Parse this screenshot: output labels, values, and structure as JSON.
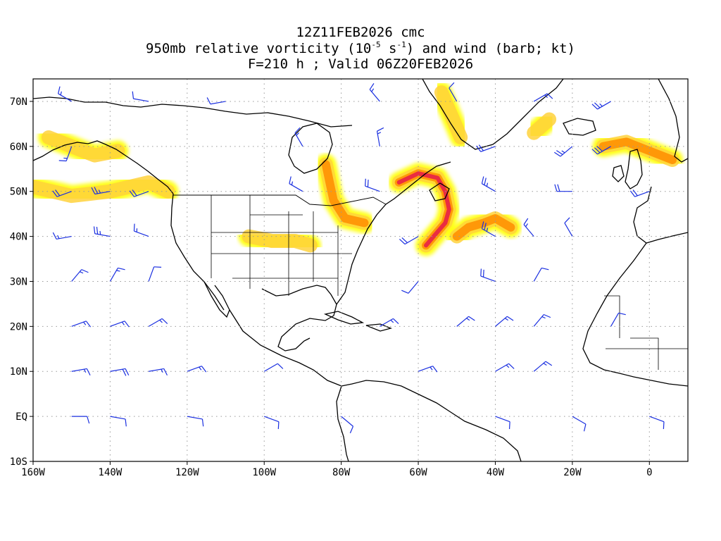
{
  "title": {
    "line1": "12Z11FEB2026 cmc",
    "line2_prefix": "950mb relative vorticity (10",
    "line2_exp1": "-5",
    "line2_mid": " s",
    "line2_exp2": "-1",
    "line2_suffix": ") and wind (barb; kt)",
    "line3": "F=210 h ; Valid 06Z20FEB2026"
  },
  "axes": {
    "lon_range": [
      -160,
      10
    ],
    "lat_range": [
      -10,
      75
    ],
    "lon_ticks": [
      {
        "value": -160,
        "label": "160W"
      },
      {
        "value": -140,
        "label": "140W"
      },
      {
        "value": -120,
        "label": "120W"
      },
      {
        "value": -100,
        "label": "100W"
      },
      {
        "value": -80,
        "label": "80W"
      },
      {
        "value": -60,
        "label": "60W"
      },
      {
        "value": -40,
        "label": "40W"
      },
      {
        "value": -20,
        "label": "20W"
      },
      {
        "value": 0,
        "label": "0"
      }
    ],
    "lat_ticks": [
      {
        "value": -10,
        "label": "10S"
      },
      {
        "value": 0,
        "label": "EQ"
      },
      {
        "value": 10,
        "label": "10N"
      },
      {
        "value": 20,
        "label": "20N"
      },
      {
        "value": 30,
        "label": "30N"
      },
      {
        "value": 40,
        "label": "40N"
      },
      {
        "value": 50,
        "label": "50N"
      },
      {
        "value": 60,
        "label": "60N"
      },
      {
        "value": 70,
        "label": "70N"
      }
    ],
    "grid": "dotted gray"
  },
  "colors": {
    "shade_low": "#ffff00",
    "shade_mid": "#ffd23c",
    "shade_high": "#ff8c00",
    "shade_max": "#e6194b",
    "barbs": "#1a2fe0",
    "coast": "#000000",
    "grid": "#999999"
  },
  "vorticity_features": [
    {
      "name": "NW Atlantic front",
      "points": [
        [
          -65,
          52
        ],
        [
          -60,
          54
        ],
        [
          -55,
          53
        ],
        [
          -53,
          50
        ],
        [
          -52,
          46
        ],
        [
          -53,
          43
        ],
        [
          -56,
          40
        ],
        [
          -58,
          38
        ]
      ],
      "level": 4
    },
    {
      "name": "Central Atlantic low",
      "points": [
        [
          -50,
          40
        ],
        [
          -47,
          42
        ],
        [
          -43,
          43
        ],
        [
          -40,
          44
        ],
        [
          -36,
          42
        ]
      ],
      "level": 3
    },
    {
      "name": "Great Lakes band",
      "points": [
        [
          -84,
          56
        ],
        [
          -83,
          52
        ],
        [
          -82,
          48
        ],
        [
          -79,
          44
        ],
        [
          -74,
          43
        ]
      ],
      "level": 3
    },
    {
      "name": "Labrador Sea band",
      "points": [
        [
          -54,
          72
        ],
        [
          -52,
          68
        ],
        [
          -50,
          64
        ],
        [
          -49,
          62
        ]
      ],
      "level": 2
    },
    {
      "name": "North Sea low",
      "points": [
        [
          -12,
          60
        ],
        [
          -6,
          61
        ],
        [
          0,
          59
        ],
        [
          6,
          57
        ]
      ],
      "level": 3
    },
    {
      "name": "Gulf of Alaska band",
      "points": [
        [
          -160,
          51
        ],
        [
          -150,
          49
        ],
        [
          -140,
          50
        ],
        [
          -130,
          52
        ],
        [
          -125,
          50
        ]
      ],
      "level": 2
    },
    {
      "name": "Southern Plains band",
      "points": [
        [
          -104,
          40
        ],
        [
          -98,
          39
        ],
        [
          -92,
          39
        ],
        [
          -88,
          38
        ]
      ],
      "level": 2
    },
    {
      "name": "Iceland low",
      "points": [
        [
          -30,
          63
        ],
        [
          -26,
          66
        ]
      ],
      "level": 2
    },
    {
      "name": "Bering region",
      "points": [
        [
          -156,
          62
        ],
        [
          -150,
          60
        ],
        [
          -144,
          58
        ],
        [
          -138,
          59
        ]
      ],
      "level": 2
    }
  ],
  "wind_barbs": [
    {
      "lon": -150,
      "lat": 70,
      "dir": 300,
      "spd": 15
    },
    {
      "lon": -130,
      "lat": 70,
      "dir": 280,
      "spd": 10
    },
    {
      "lon": -110,
      "lat": 70,
      "dir": 260,
      "spd": 10
    },
    {
      "lon": -70,
      "lat": 70,
      "dir": 320,
      "spd": 15
    },
    {
      "lon": -50,
      "lat": 70,
      "dir": 330,
      "spd": 10
    },
    {
      "lon": -30,
      "lat": 70,
      "dir": 60,
      "spd": 15
    },
    {
      "lon": -10,
      "lat": 70,
      "dir": 240,
      "spd": 25
    },
    {
      "lon": -150,
      "lat": 60,
      "dir": 200,
      "spd": 15
    },
    {
      "lon": -90,
      "lat": 60,
      "dir": 330,
      "spd": 15
    },
    {
      "lon": -70,
      "lat": 60,
      "dir": 350,
      "spd": 15
    },
    {
      "lon": -40,
      "lat": 60,
      "dir": 250,
      "spd": 20
    },
    {
      "lon": -20,
      "lat": 60,
      "dir": 230,
      "spd": 25
    },
    {
      "lon": -10,
      "lat": 60,
      "dir": 240,
      "spd": 30
    },
    {
      "lon": -150,
      "lat": 50,
      "dir": 250,
      "spd": 20
    },
    {
      "lon": -140,
      "lat": 50,
      "dir": 260,
      "spd": 25
    },
    {
      "lon": -130,
      "lat": 50,
      "dir": 250,
      "spd": 20
    },
    {
      "lon": -90,
      "lat": 50,
      "dir": 300,
      "spd": 15
    },
    {
      "lon": -70,
      "lat": 50,
      "dir": 290,
      "spd": 20
    },
    {
      "lon": -40,
      "lat": 50,
      "dir": 300,
      "spd": 25
    },
    {
      "lon": -20,
      "lat": 50,
      "dir": 270,
      "spd": 20
    },
    {
      "lon": 0,
      "lat": 50,
      "dir": 250,
      "spd": 20
    },
    {
      "lon": -150,
      "lat": 40,
      "dir": 260,
      "spd": 15
    },
    {
      "lon": -140,
      "lat": 40,
      "dir": 280,
      "spd": 25
    },
    {
      "lon": -130,
      "lat": 40,
      "dir": 290,
      "spd": 15
    },
    {
      "lon": -60,
      "lat": 40,
      "dir": 240,
      "spd": 20
    },
    {
      "lon": -40,
      "lat": 40,
      "dir": 300,
      "spd": 25
    },
    {
      "lon": -30,
      "lat": 40,
      "dir": 320,
      "spd": 15
    },
    {
      "lon": -20,
      "lat": 40,
      "dir": 330,
      "spd": 10
    },
    {
      "lon": -150,
      "lat": 30,
      "dir": 40,
      "spd": 15
    },
    {
      "lon": -140,
      "lat": 30,
      "dir": 30,
      "spd": 15
    },
    {
      "lon": -130,
      "lat": 30,
      "dir": 20,
      "spd": 10
    },
    {
      "lon": -60,
      "lat": 30,
      "dir": 220,
      "spd": 10
    },
    {
      "lon": -40,
      "lat": 30,
      "dir": 290,
      "spd": 20
    },
    {
      "lon": -30,
      "lat": 30,
      "dir": 30,
      "spd": 10
    },
    {
      "lon": -150,
      "lat": 20,
      "dir": 70,
      "spd": 15
    },
    {
      "lon": -140,
      "lat": 20,
      "dir": 70,
      "spd": 15
    },
    {
      "lon": -130,
      "lat": 20,
      "dir": 60,
      "spd": 15
    },
    {
      "lon": -70,
      "lat": 20,
      "dir": 60,
      "spd": 15
    },
    {
      "lon": -50,
      "lat": 20,
      "dir": 50,
      "spd": 15
    },
    {
      "lon": -40,
      "lat": 20,
      "dir": 50,
      "spd": 15
    },
    {
      "lon": -30,
      "lat": 20,
      "dir": 40,
      "spd": 15
    },
    {
      "lon": -10,
      "lat": 20,
      "dir": 30,
      "spd": 10
    },
    {
      "lon": -150,
      "lat": 10,
      "dir": 80,
      "spd": 15
    },
    {
      "lon": -140,
      "lat": 10,
      "dir": 80,
      "spd": 20
    },
    {
      "lon": -130,
      "lat": 10,
      "dir": 80,
      "spd": 15
    },
    {
      "lon": -120,
      "lat": 10,
      "dir": 70,
      "spd": 15
    },
    {
      "lon": -100,
      "lat": 10,
      "dir": 60,
      "spd": 10
    },
    {
      "lon": -60,
      "lat": 10,
      "dir": 70,
      "spd": 15
    },
    {
      "lon": -40,
      "lat": 10,
      "dir": 60,
      "spd": 15
    },
    {
      "lon": -30,
      "lat": 10,
      "dir": 50,
      "spd": 15
    },
    {
      "lon": -150,
      "lat": 0,
      "dir": 90,
      "spd": 10
    },
    {
      "lon": -140,
      "lat": 0,
      "dir": 100,
      "spd": 10
    },
    {
      "lon": -120,
      "lat": 0,
      "dir": 100,
      "spd": 10
    },
    {
      "lon": -100,
      "lat": 0,
      "dir": 110,
      "spd": 10
    },
    {
      "lon": -80,
      "lat": 0,
      "dir": 130,
      "spd": 10
    },
    {
      "lon": -40,
      "lat": 0,
      "dir": 110,
      "spd": 10
    },
    {
      "lon": -20,
      "lat": 0,
      "dir": 120,
      "spd": 10
    },
    {
      "lon": 0,
      "lat": 0,
      "dir": 110,
      "spd": 10
    },
    {
      "lon": -150,
      "lat": -10,
      "dir": 120,
      "spd": 10
    },
    {
      "lon": -130,
      "lat": -10,
      "dir": 130,
      "spd": 10
    },
    {
      "lon": -110,
      "lat": -10,
      "dir": 130,
      "spd": 10
    }
  ]
}
